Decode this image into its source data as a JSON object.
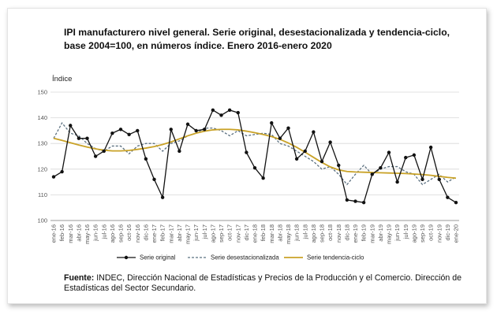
{
  "header": {
    "title": "IPI manufacturero nivel general. Serie original, desestacionalizada y tendencia-ciclo, base 2004=100, en números índice. Enero 2016-enero 2020"
  },
  "footer": {
    "source_label": "Fuente:",
    "source_text": "INDEC, Dirección Nacional de Estadísticas y Precios de la Producción y el Comercio. Dirección de Estadísticas del Sector Secundario."
  },
  "chart_data": {
    "type": "line",
    "ylabel": "Índice",
    "ylim": [
      100,
      150
    ],
    "yticks": [
      100,
      110,
      120,
      130,
      140,
      150
    ],
    "grid": true,
    "legend_position": "bottom",
    "categories": [
      "ene-16",
      "feb-16",
      "mar-16",
      "abr-16",
      "may-16",
      "jun-16",
      "jul-16",
      "ago-16",
      "sep-16",
      "oct-16",
      "nov-16",
      "dic-16",
      "ene-17",
      "feb-17",
      "mar-17",
      "abr-17",
      "may-17",
      "jun-17",
      "jul-17",
      "ago-17",
      "sep-17",
      "oct-17",
      "nov-17",
      "dic-17",
      "ene-18",
      "feb-18",
      "mar-18",
      "abr-18",
      "may-18",
      "jun-18",
      "jul-18",
      "ago-18",
      "sep-18",
      "oct-18",
      "nov-18",
      "dic-18",
      "ene-19",
      "feb-19",
      "mar-19",
      "abr-19",
      "may-19",
      "jun-19",
      "jul-19",
      "ago-19",
      "sep-19",
      "oct-19",
      "nov-19",
      "dic-19",
      "ene-20"
    ],
    "series": [
      {
        "name": "Serie original",
        "color": "#111111",
        "style": "solid-marker",
        "values": [
          117,
          119,
          137,
          132,
          132,
          125,
          127,
          134,
          135.5,
          133.5,
          135,
          124,
          116,
          109,
          135.5,
          127,
          137.5,
          135,
          135.5,
          143,
          141,
          143,
          142,
          126.5,
          120.5,
          116.5,
          138,
          132,
          136,
          124,
          127,
          134.5,
          123,
          130.5,
          121.5,
          108,
          107.5,
          107,
          118,
          120.5,
          126.5,
          115,
          124.5,
          125.5,
          116,
          128.5,
          116,
          109,
          107
        ]
      },
      {
        "name": "Serie desestacionalizada",
        "color": "#5b7080",
        "style": "dashed",
        "values": [
          132,
          138,
          134,
          133,
          130,
          128,
          127,
          129,
          129,
          126,
          129,
          130,
          130,
          127,
          130,
          131,
          133,
          134,
          136,
          136,
          135,
          133,
          135,
          133,
          133.5,
          134,
          133.5,
          130,
          129,
          127,
          125,
          123,
          120,
          121,
          118,
          114,
          118,
          121.5,
          118,
          120,
          121,
          121,
          119,
          118,
          114,
          116,
          118,
          115,
          117
        ]
      },
      {
        "name": "Serie tendencia-ciclo",
        "color": "#c9a227",
        "style": "solid",
        "values": [
          132,
          131.2,
          130.3,
          129.4,
          128.6,
          127.9,
          127.4,
          127.1,
          127.1,
          127.3,
          127.7,
          128.2,
          128.8,
          129.6,
          130.6,
          131.8,
          133,
          134,
          134.8,
          135.3,
          135.5,
          135.5,
          135.3,
          134.8,
          134.2,
          133.5,
          132.7,
          131.6,
          130.2,
          128.5,
          126.6,
          124.6,
          122.6,
          120.9,
          119.7,
          119.1,
          118.9,
          118.8,
          118.7,
          118.6,
          118.5,
          118.4,
          118.3,
          118.1,
          117.9,
          117.6,
          117.2,
          116.8,
          116.5
        ]
      }
    ]
  }
}
